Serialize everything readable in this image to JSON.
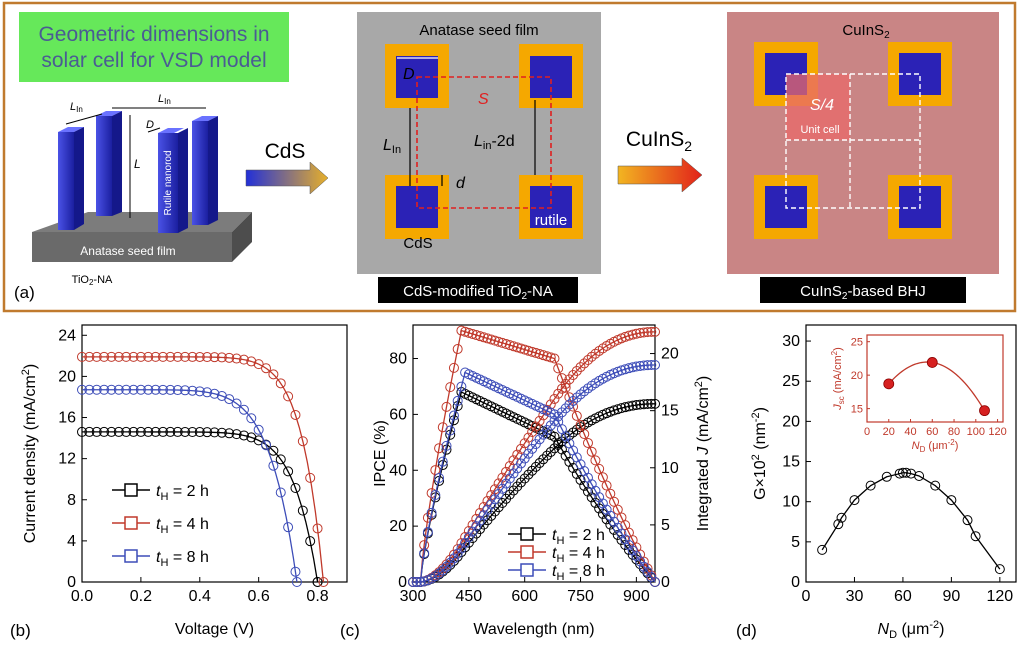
{
  "panel_a": {
    "label": "(a)",
    "banner_line1": "Geometric dimensions in",
    "banner_line2": "solar cell for VSD model",
    "nanorod_label": "Rutile nanorod",
    "seed_film_label": "Anatase seed film",
    "lin_label": "L",
    "lin_sub": "In",
    "d_label": "D",
    "l_label": "L",
    "tio2_caption": "TiO",
    "tio2_sub": "2",
    "tio2_suffix": "-NA",
    "arrow1_label": "CdS",
    "arrow2_label": "CuInS",
    "arrow2_sub": "2",
    "mid_title": "Anatase seed film",
    "mid_D": "D",
    "mid_S": "S",
    "mid_Lin": "L",
    "mid_Lin_sub": "In",
    "mid_Lin2d": "L",
    "mid_Lin2d_sub": "in",
    "mid_Lin2d_suffix": "-2d",
    "mid_d": "d",
    "mid_cds": "CdS",
    "mid_rutile": "rutile",
    "mid_caption": "CdS-modified TiO",
    "mid_caption_sub": "2",
    "mid_caption_suffix": "-NA",
    "right_title": "CuInS",
    "right_title_sub": "2",
    "right_s4": "S/4",
    "right_unitcell": "Unit cell",
    "right_caption": "CuInS",
    "right_caption_sub": "2",
    "right_caption_suffix": "-based BHJ"
  },
  "colors": {
    "frame": "#c07a2e",
    "banner": "#66e85a",
    "banner_text": "#4a5c93",
    "rod": "#2b2fbf",
    "cds_shell": "#f5a800",
    "grey_panel": "#a8a8a8",
    "cis_panel": "#c98585",
    "series_2h": "#000000",
    "series_4h": "#c0392b",
    "series_8h": "#3d4db8"
  },
  "chart_data": [
    {
      "panel": "(b)",
      "type": "line",
      "xlabel": "Voltage (V)",
      "ylabel": "Current density (mA/cm2)",
      "ylabel_main": "Current density (mA/cm",
      "ylabel_sup": "2",
      "ylabel_tail": ")",
      "xlim": [
        0,
        0.9
      ],
      "ylim": [
        0,
        25
      ],
      "xticks": [
        "0.0",
        "0.2",
        "0.4",
        "0.6",
        "0.8"
      ],
      "xtick_values": [
        0,
        0.2,
        0.4,
        0.6,
        0.8
      ],
      "yticks": [
        "0",
        "4",
        "8",
        "12",
        "16",
        "20",
        "24"
      ],
      "ytick_values": [
        0,
        4,
        8,
        12,
        16,
        20,
        24
      ],
      "legend": [
        "t_H = 2 h",
        "t_H = 4 h",
        "t_H = 8 h"
      ],
      "series": [
        {
          "name": "t_H = 2 h",
          "jsc": 14.6,
          "voc": 0.8,
          "n": 10
        },
        {
          "name": "t_H = 4 h",
          "jsc": 21.9,
          "voc": 0.82,
          "n": 11
        },
        {
          "name": "t_H = 8 h",
          "jsc": 18.7,
          "voc": 0.73,
          "n": 8
        }
      ]
    },
    {
      "panel": "(c)",
      "type": "line",
      "xlabel": "Wavelength (nm)",
      "ylabel_left": "IPCE (%)",
      "ylabel_right": "Integrated J (mA/cm2)",
      "ylabel_right_main": "Integrated ",
      "ylabel_right_j": "J",
      "ylabel_right_unit": " (mA/cm",
      "ylabel_right_sup": "2",
      "ylabel_right_tail": ")",
      "xlim": [
        300,
        950
      ],
      "ylim_left": [
        0,
        92
      ],
      "ylim_right": [
        0,
        22.5
      ],
      "xticks": [
        "300",
        "450",
        "600",
        "750",
        "900"
      ],
      "xtick_values": [
        300,
        450,
        600,
        750,
        900
      ],
      "yticks_left": [
        "0",
        "20",
        "40",
        "60",
        "80"
      ],
      "ytick_left_values": [
        0,
        20,
        40,
        60,
        80
      ],
      "yticks_right": [
        "0",
        "5",
        "10",
        "15",
        "20"
      ],
      "ytick_right_values": [
        0,
        5,
        10,
        15,
        20
      ],
      "legend": [
        "t_H = 2 h",
        "t_H = 4 h",
        "t_H = 8 h"
      ],
      "series": [
        {
          "name": "t_H = 2 h",
          "ipce_peak": 68,
          "ipce_peak_nm": 430,
          "ipce_tail": 52,
          "j_final": 15.6
        },
        {
          "name": "t_H = 4 h",
          "ipce_peak": 90,
          "ipce_peak_nm": 430,
          "ipce_tail": 80,
          "j_final": 21.9
        },
        {
          "name": "t_H = 8 h",
          "ipce_peak": 75,
          "ipce_peak_nm": 440,
          "ipce_tail": 60,
          "j_final": 19.0
        }
      ]
    },
    {
      "panel": "(d)",
      "type": "line",
      "xlabel": "N_D (μm^-2)",
      "ylabel": "G×10^2 (nm^-2)",
      "xlim": [
        0,
        130
      ],
      "ylim": [
        0,
        32
      ],
      "xticks": [
        "0",
        "30",
        "60",
        "90",
        "120"
      ],
      "xtick_values": [
        0,
        30,
        60,
        90,
        120
      ],
      "yticks": [
        "0",
        "5",
        "10",
        "15",
        "20",
        "25",
        "30"
      ],
      "ytick_values": [
        0,
        5,
        10,
        15,
        20,
        25,
        30
      ],
      "x": [
        10,
        20,
        22,
        30,
        40,
        50,
        58,
        60,
        62,
        65,
        70,
        80,
        90,
        100,
        105,
        120
      ],
      "y": [
        4.0,
        7.2,
        8.0,
        10.2,
        12.0,
        13.1,
        13.5,
        13.6,
        13.6,
        13.5,
        13.2,
        12.0,
        10.2,
        7.7,
        5.7,
        1.6
      ],
      "inset": {
        "xlabel": "N_D (μm^-2)",
        "ylabel": "J_sc (mA/cm2)",
        "xlim": [
          0,
          125
        ],
        "ylim": [
          13,
          26
        ],
        "xticks": [
          "0",
          "20",
          "40",
          "60",
          "80",
          "100",
          "120"
        ],
        "xtick_values": [
          0,
          20,
          40,
          60,
          80,
          100,
          120
        ],
        "yticks": [
          "15",
          "20",
          "25"
        ],
        "ytick_values": [
          15,
          20,
          25
        ],
        "x": [
          20,
          60,
          108
        ],
        "y": [
          18.7,
          21.9,
          14.7
        ]
      }
    }
  ]
}
